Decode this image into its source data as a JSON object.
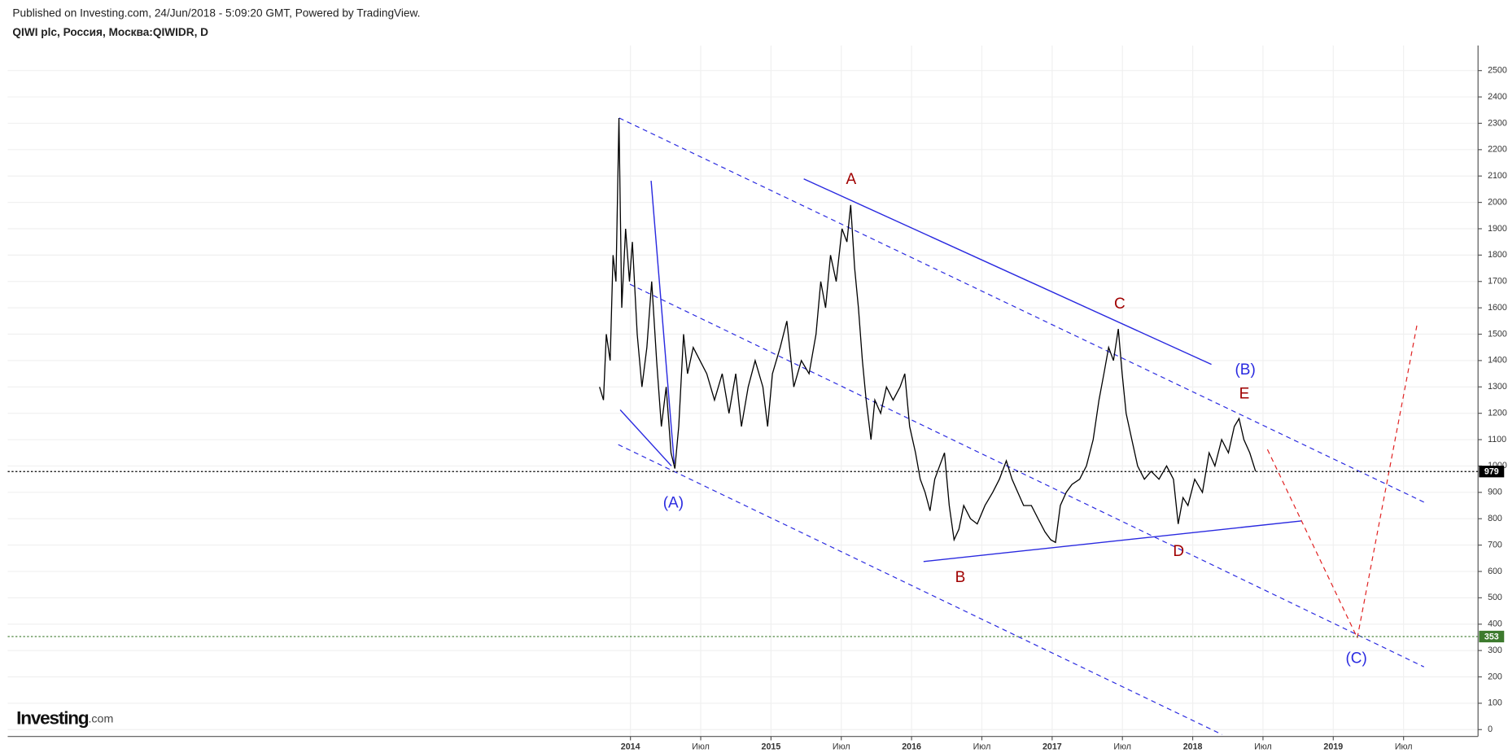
{
  "header": {
    "published": "Published on Investing.com, 24/Jun/2018 - 5:09:20 GMT, Powered by TradingView."
  },
  "logo": {
    "brand": "Investing",
    "suffix": ".com"
  },
  "chart_data": {
    "type": "line",
    "title": "QIWI plc, Россия, Москва:QIWIDR, D",
    "color": "#000000",
    "grid": true,
    "x": [
      2013.78,
      2013.808,
      2013.828,
      2013.856,
      2013.876,
      2013.897,
      2013.918,
      2013.938,
      2013.966,
      2013.993,
      2014.014,
      2014.048,
      2014.082,
      2014.117,
      2014.151,
      2014.186,
      2014.22,
      2014.254,
      2014.289,
      2014.316,
      2014.344,
      2014.378,
      2014.406,
      2014.447,
      2014.495,
      2014.543,
      2014.598,
      2014.653,
      2014.701,
      2014.749,
      2014.79,
      2014.838,
      2014.887,
      2014.942,
      2014.976,
      2015.01,
      2015.065,
      2015.113,
      2015.162,
      2015.216,
      2015.271,
      2015.32,
      2015.354,
      2015.388,
      2015.423,
      2015.464,
      2015.505,
      2015.54,
      2015.567,
      2015.595,
      2015.622,
      2015.65,
      2015.677,
      2015.711,
      2015.739,
      2015.78,
      2015.821,
      2015.869,
      2015.918,
      2015.952,
      2015.986,
      2016.028,
      2016.062,
      2016.096,
      2016.131,
      2016.165,
      2016.199,
      2016.234,
      2016.268,
      2016.302,
      2016.337,
      2016.371,
      2016.419,
      2016.467,
      2016.522,
      2016.577,
      2016.625,
      2016.674,
      2016.715,
      2016.756,
      2016.797,
      2016.852,
      2016.9,
      2016.949,
      2016.99,
      2017.024,
      2017.058,
      2017.1,
      2017.141,
      2017.196,
      2017.244,
      2017.292,
      2017.333,
      2017.368,
      2017.402,
      2017.436,
      2017.471,
      2017.498,
      2017.526,
      2017.567,
      2017.608,
      2017.656,
      2017.704,
      2017.76,
      2017.814,
      2017.863,
      2017.897,
      2017.931,
      2017.966,
      2018.014,
      2018.069,
      2018.117,
      2018.158,
      2018.206,
      2018.254,
      2018.296,
      2018.33,
      2018.364,
      2018.406,
      2018.447
    ],
    "values": [
      1300,
      1250,
      1500,
      1400,
      1800,
      1700,
      2320,
      1600,
      1900,
      1700,
      1850,
      1500,
      1300,
      1450,
      1700,
      1400,
      1150,
      1300,
      1050,
      990,
      1150,
      1500,
      1350,
      1450,
      1400,
      1350,
      1250,
      1350,
      1200,
      1350,
      1150,
      1300,
      1400,
      1300,
      1150,
      1350,
      1450,
      1550,
      1300,
      1400,
      1350,
      1500,
      1700,
      1600,
      1800,
      1700,
      1900,
      1850,
      1990,
      1750,
      1600,
      1400,
      1250,
      1100,
      1250,
      1200,
      1300,
      1250,
      1300,
      1350,
      1150,
      1050,
      950,
      900,
      830,
      950,
      1000,
      1050,
      850,
      720,
      760,
      850,
      800,
      780,
      850,
      900,
      950,
      1020,
      950,
      900,
      850,
      850,
      800,
      750,
      720,
      710,
      850,
      900,
      930,
      950,
      1000,
      1100,
      1250,
      1350,
      1450,
      1400,
      1520,
      1350,
      1200,
      1100,
      1000,
      950,
      980,
      950,
      1000,
      950,
      780,
      880,
      850,
      950,
      900,
      1050,
      1000,
      1100,
      1050,
      1150,
      1180,
      1100,
      1050,
      980
    ],
    "xlim": [
      2009.57,
      2020.03
    ],
    "xticks": [
      {
        "value": 2014,
        "label": "2014"
      },
      {
        "value": 2014.5,
        "label": "Июл"
      },
      {
        "value": 2015,
        "label": "2015"
      },
      {
        "value": 2015.5,
        "label": "Июл"
      },
      {
        "value": 2016,
        "label": "2016"
      },
      {
        "value": 2016.5,
        "label": "Июл"
      },
      {
        "value": 2017,
        "label": "2017"
      },
      {
        "value": 2017.5,
        "label": "Июл"
      },
      {
        "value": 2018,
        "label": "2018"
      },
      {
        "value": 2018.5,
        "label": "Июл"
      },
      {
        "value": 2019,
        "label": "2019"
      },
      {
        "value": 2019.5,
        "label": "Июл"
      }
    ],
    "ylim": [
      -26,
      2595
    ],
    "yticks": [
      0,
      100,
      200,
      300,
      400,
      500,
      600,
      700,
      800,
      900,
      1000,
      1100,
      1200,
      1300,
      1400,
      1500,
      1600,
      1700,
      1800,
      1900,
      2000,
      2100,
      2200,
      2300,
      2400,
      2500
    ],
    "price_lines": [
      {
        "value": 979,
        "color": "#000000"
      },
      {
        "value": 353,
        "color": "#3d7a2e"
      }
    ],
    "annotations": [
      {
        "text": "A",
        "color": "#a00000"
      },
      {
        "text": "B",
        "color": "#a00000"
      },
      {
        "text": "C",
        "color": "#a00000"
      },
      {
        "text": "D",
        "color": "#a00000"
      },
      {
        "text": "E",
        "color": "#a00000"
      },
      {
        "text": "(A)",
        "color": "#2a2ae0"
      },
      {
        "text": "(B)",
        "color": "#2a2ae0"
      },
      {
        "text": "(C)",
        "color": "#2a2ae0"
      }
    ]
  }
}
